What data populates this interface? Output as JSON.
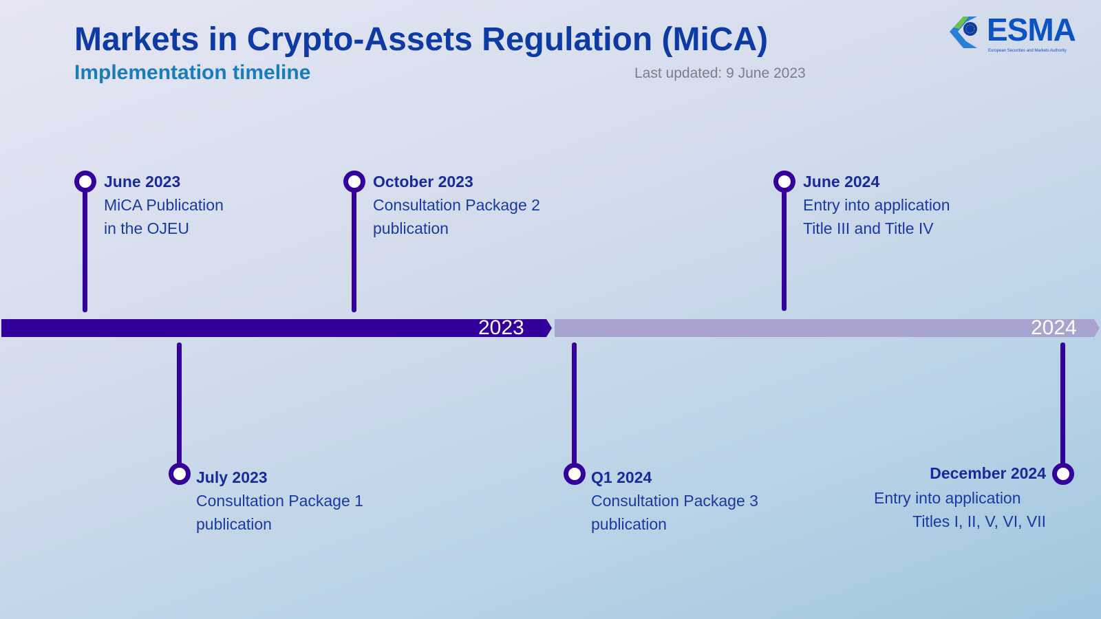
{
  "header": {
    "title": "Markets in Crypto-Assets Regulation (MiCA)",
    "subtitle": "Implementation timeline",
    "updated": "Last updated: 9 June 2023"
  },
  "logo": {
    "text": "ESMA",
    "tagline": "European Securities and Markets Authority"
  },
  "timeline": {
    "years": [
      {
        "label": "2023",
        "color": "#33009c"
      },
      {
        "label": "2024",
        "color": "#a9a3cf"
      }
    ],
    "events": [
      {
        "date": "June 2023",
        "line1": "MiCA Publication",
        "line2": "in the OJEU"
      },
      {
        "date": "July 2023",
        "line1": "Consultation Package 1",
        "line2": "publication"
      },
      {
        "date": "October 2023",
        "line1": "Consultation Package 2",
        "line2": "publication"
      },
      {
        "date": "Q1 2024",
        "line1": "Consultation Package 3",
        "line2": "publication"
      },
      {
        "date": "June 2024",
        "line1": "Entry into application",
        "line2": "Title III and Title IV"
      },
      {
        "date": "December 2024",
        "line1": "Entry into application",
        "line2": "Titles I, II, V, VI, VII"
      }
    ]
  }
}
